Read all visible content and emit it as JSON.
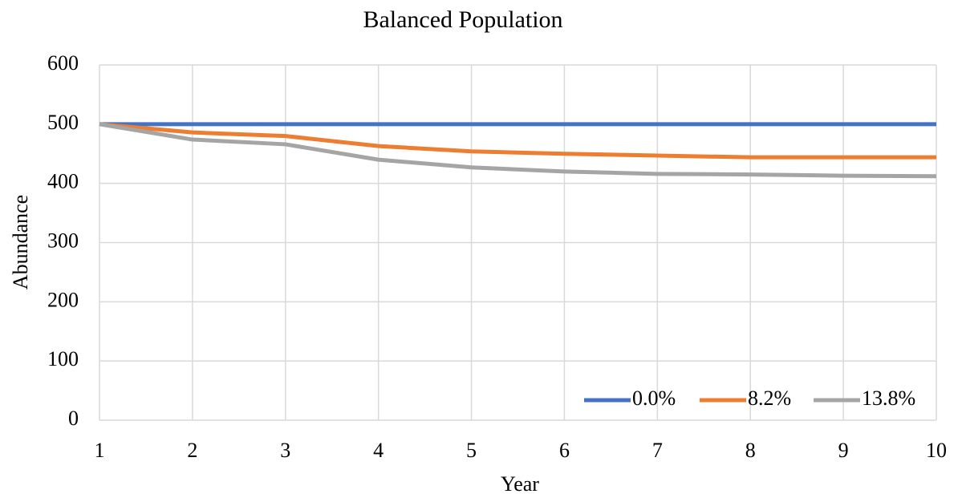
{
  "chart_data": {
    "type": "line",
    "title": "Balanced Population",
    "x_label": "Year",
    "y_label": "Abundance",
    "x": [
      1,
      2,
      3,
      4,
      5,
      6,
      7,
      8,
      9,
      10
    ],
    "series": [
      {
        "name": "0.0%",
        "color": "#4472c4",
        "values": [
          500,
          500,
          500,
          500,
          500,
          500,
          500,
          500,
          500,
          500
        ]
      },
      {
        "name": "8.2%",
        "color": "#ed7d31",
        "values": [
          500,
          486,
          480,
          463,
          454,
          450,
          447,
          444,
          444,
          444
        ]
      },
      {
        "name": "13.8%",
        "color": "#a5a5a5",
        "values": [
          500,
          474,
          466,
          440,
          427,
          420,
          416,
          415,
          413,
          412
        ]
      }
    ],
    "xlim": [
      1,
      10
    ],
    "xticks": [
      1,
      2,
      3,
      4,
      5,
      6,
      7,
      8,
      9,
      10
    ],
    "ylim": [
      0,
      600
    ],
    "yticks": [
      0,
      100,
      200,
      300,
      400,
      500,
      600
    ],
    "grid": true,
    "legend": "bottom-right"
  }
}
